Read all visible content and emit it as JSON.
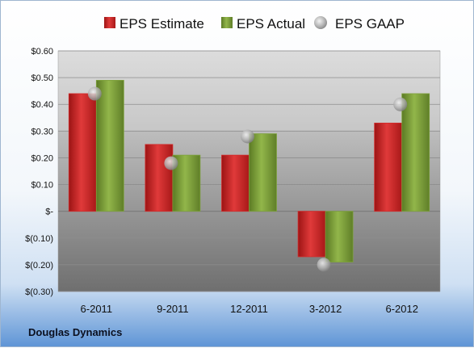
{
  "company_label": "Douglas Dynamics",
  "colors": {
    "estimate": "#d42a2a",
    "actual": "#7ea23c",
    "gaap": "#a9a9a9"
  },
  "chart_data": {
    "type": "bar",
    "categories": [
      "6-2011",
      "9-2011",
      "12-2011",
      "3-2012",
      "6-2012"
    ],
    "series": [
      {
        "name": "EPS Estimate",
        "kind": "bar",
        "values": [
          0.44,
          0.25,
          0.21,
          -0.17,
          0.33
        ]
      },
      {
        "name": "EPS Actual",
        "kind": "bar",
        "values": [
          0.49,
          0.21,
          0.29,
          -0.19,
          0.44
        ]
      },
      {
        "name": "EPS GAAP",
        "kind": "marker",
        "values": [
          0.44,
          0.18,
          0.28,
          -0.2,
          0.4
        ]
      }
    ],
    "ylim": [
      -0.3,
      0.6
    ],
    "yticks": [
      0.6,
      0.5,
      0.4,
      0.3,
      0.2,
      0.1,
      0.0,
      -0.1,
      -0.2,
      -0.3
    ],
    "ytick_labels": [
      "$0.60",
      "$0.50",
      "$0.40",
      "$0.30",
      "$0.20",
      "$0.10",
      "$-",
      "$(0.10)",
      "$(0.20)",
      "$(0.30)"
    ],
    "legend_position": "top",
    "grid": true
  }
}
